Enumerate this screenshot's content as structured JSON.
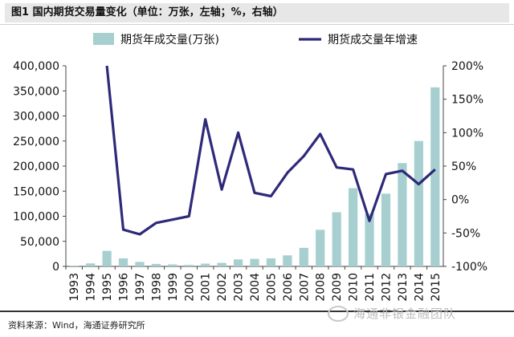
{
  "figure_title": "图1  国内期货交易量变化（单位：万张，左轴；%，右轴）",
  "source_note": "资料来源：Wind，海通证券研究所",
  "watermark": "海通非银金融团队",
  "watermark_icon": "wechat-icon",
  "colors": {
    "bar": "#a8cfcf",
    "line": "#2e2a7a",
    "title_bg": "#e7e7e7"
  },
  "chart_data": {
    "type": "bar+line",
    "categories": [
      "1993",
      "1994",
      "1995",
      "1996",
      "1997",
      "1998",
      "1999",
      "2000",
      "2001",
      "2002",
      "2003",
      "2004",
      "2005",
      "2006",
      "2007",
      "2008",
      "2009",
      "2010",
      "2011",
      "2012",
      "2013",
      "2014",
      "2015"
    ],
    "series": [
      {
        "name": "期货年成交量(万张)",
        "type": "bar",
        "axis": "left",
        "values": [
          1500,
          6000,
          31000,
          16000,
          9000,
          5000,
          4000,
          3000,
          5500,
          7000,
          14000,
          15000,
          16000,
          22000,
          37000,
          73000,
          108000,
          156000,
          105000,
          145000,
          206000,
          250000,
          357000
        ]
      },
      {
        "name": "期货成交量年增速",
        "type": "line",
        "axis": "right",
        "values": [
          null,
          null,
          200,
          -45,
          -52,
          -35,
          -30,
          -25,
          120,
          15,
          100,
          10,
          5,
          40,
          65,
          98,
          48,
          45,
          -32,
          38,
          43,
          23,
          45
        ]
      }
    ],
    "y_left": {
      "min": 0,
      "max": 400000,
      "ticks": [
        "0",
        "50,000",
        "100,000",
        "150,000",
        "200,000",
        "250,000",
        "300,000",
        "350,000",
        "400,000"
      ]
    },
    "y_right": {
      "min": -100,
      "max": 200,
      "ticks": [
        "-100%",
        "-50%",
        "0%",
        "50%",
        "100%",
        "150%",
        "200%"
      ]
    },
    "legend_position": "top",
    "grid": false
  }
}
